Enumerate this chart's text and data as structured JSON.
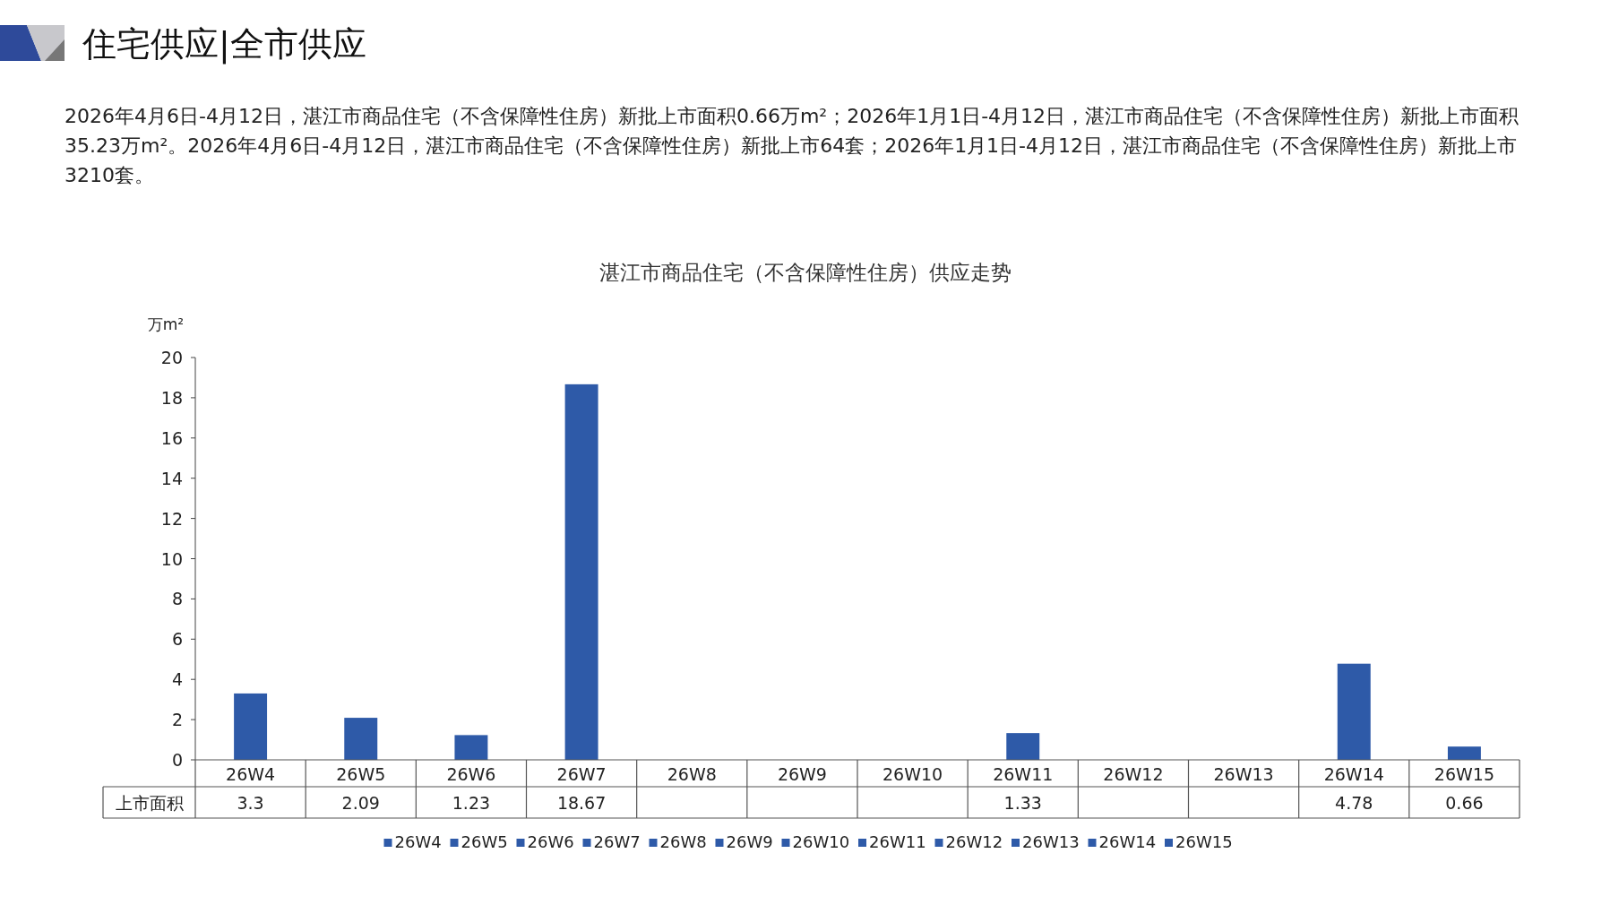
{
  "chart_data": {
    "type": "bar",
    "title": "住宅供应|全市供应",
    "subtitle": "湛江市商品住宅（不含保障性住房）供应走势",
    "annotations": [
      "2026年4月6日-4月12日，湛江市商品住宅（不含保障性住房）新批上市面积0.66万m²；2026年1月1日-4月12日，湛江市商品住宅（不含保障性住房）新批上市面积35.23万m²。2026年4月6日-4月12日，湛江市商品住宅（不含保障性住房）新批上市64套；2026年1月1日-4月12日，湛江市商品住宅（不含保障性住房）新批上市3210套。"
    ],
    "ylabel": "万m²",
    "categories": [
      "26W4",
      "26W5",
      "26W6",
      "26W7",
      "26W8",
      "26W9",
      "26W10",
      "26W11",
      "26W12",
      "26W13",
      "26W14",
      "26W15"
    ],
    "series": [
      {
        "name": "上市面积",
        "colors": [
          "#2e5aa8",
          "#2e5aa8",
          "#2e5aa8",
          "#2e5aa8",
          "#2e5aa8",
          "#2e5aa8",
          "#2e5aa8",
          "#2e5aa8",
          "#2e5aa8",
          "#2e5aa8",
          "#2e5aa8",
          "#2e5aa8"
        ],
        "values": [
          3.3,
          2.09,
          1.23,
          18.67,
          null,
          null,
          null,
          1.33,
          null,
          null,
          4.78,
          0.66
        ]
      }
    ],
    "ylim": [
      0,
      20
    ],
    "yticks": [
      0,
      2,
      4,
      6,
      8,
      10,
      12,
      14,
      16,
      18,
      20
    ],
    "data_labels": true,
    "grid": false,
    "legend": "bottom"
  }
}
